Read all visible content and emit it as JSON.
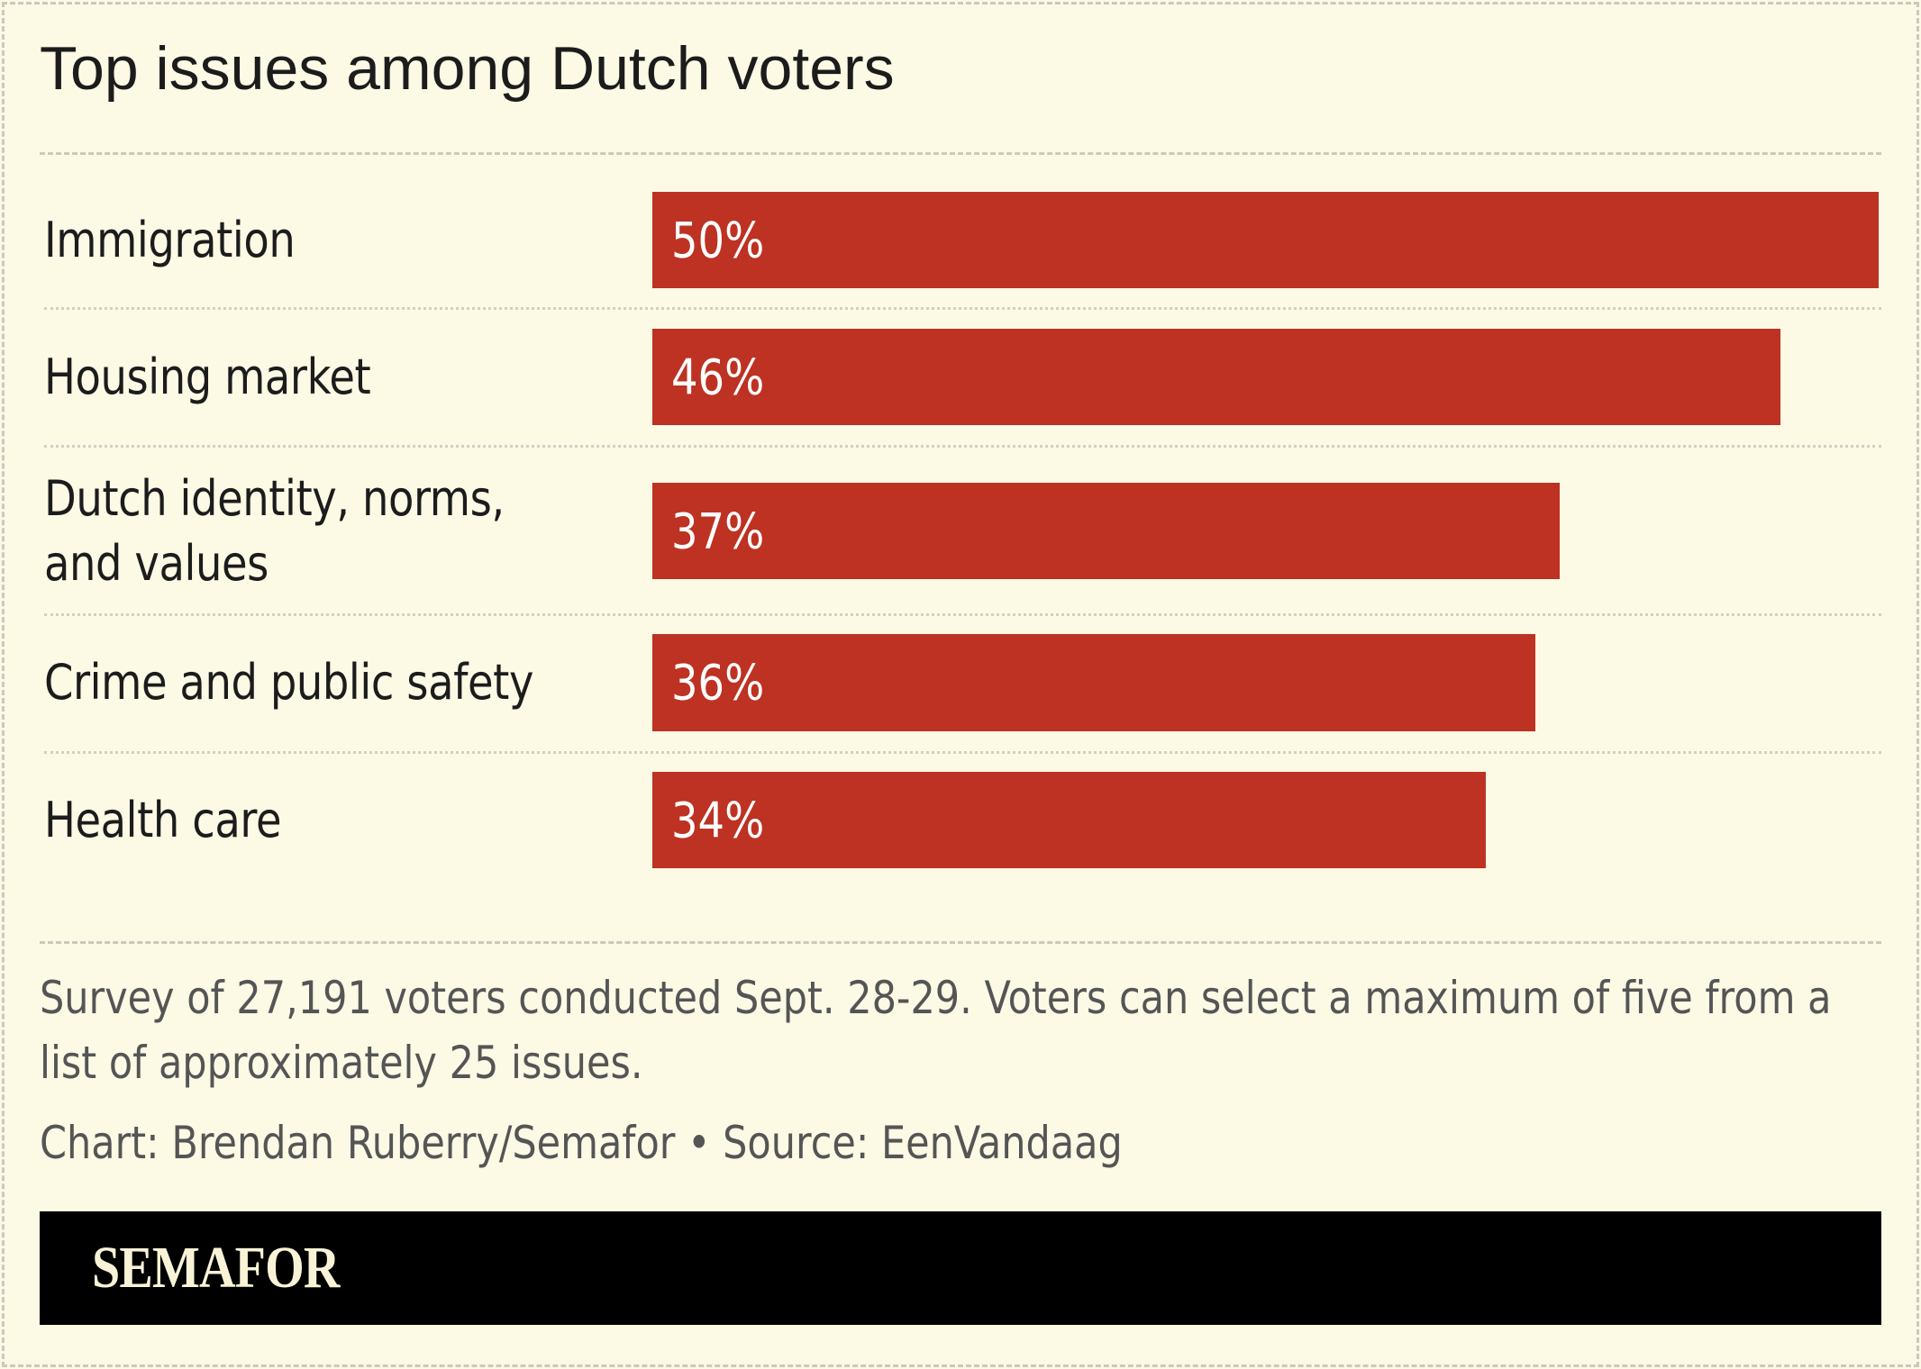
{
  "title": "Top issues among Dutch voters",
  "chart_data": {
    "type": "bar",
    "orientation": "horizontal",
    "title": "Top issues among Dutch voters",
    "categories": [
      "Immigration",
      "Housing market",
      "Dutch identity, norms, and values",
      "Crime and public safety",
      "Health care"
    ],
    "values": [
      50,
      46,
      37,
      36,
      34
    ],
    "value_labels": [
      "50%",
      "46%",
      "37%",
      "36%",
      "34%"
    ],
    "unit": "%",
    "xlim": [
      0,
      50
    ],
    "grid": false,
    "bar_color": "#bd3222"
  },
  "note": "Survey of 27,191 voters conducted Sept. 28-29. Voters can select a maximum of five from a list of approximately 25 issues.",
  "credit": "Chart: Brendan Ruberry/Semafor • Source: EenVandaag",
  "logo": "SEMAFOR",
  "colors": {
    "background": "#fcf9e5",
    "bar": "#bd3222",
    "footer": "#000000"
  }
}
